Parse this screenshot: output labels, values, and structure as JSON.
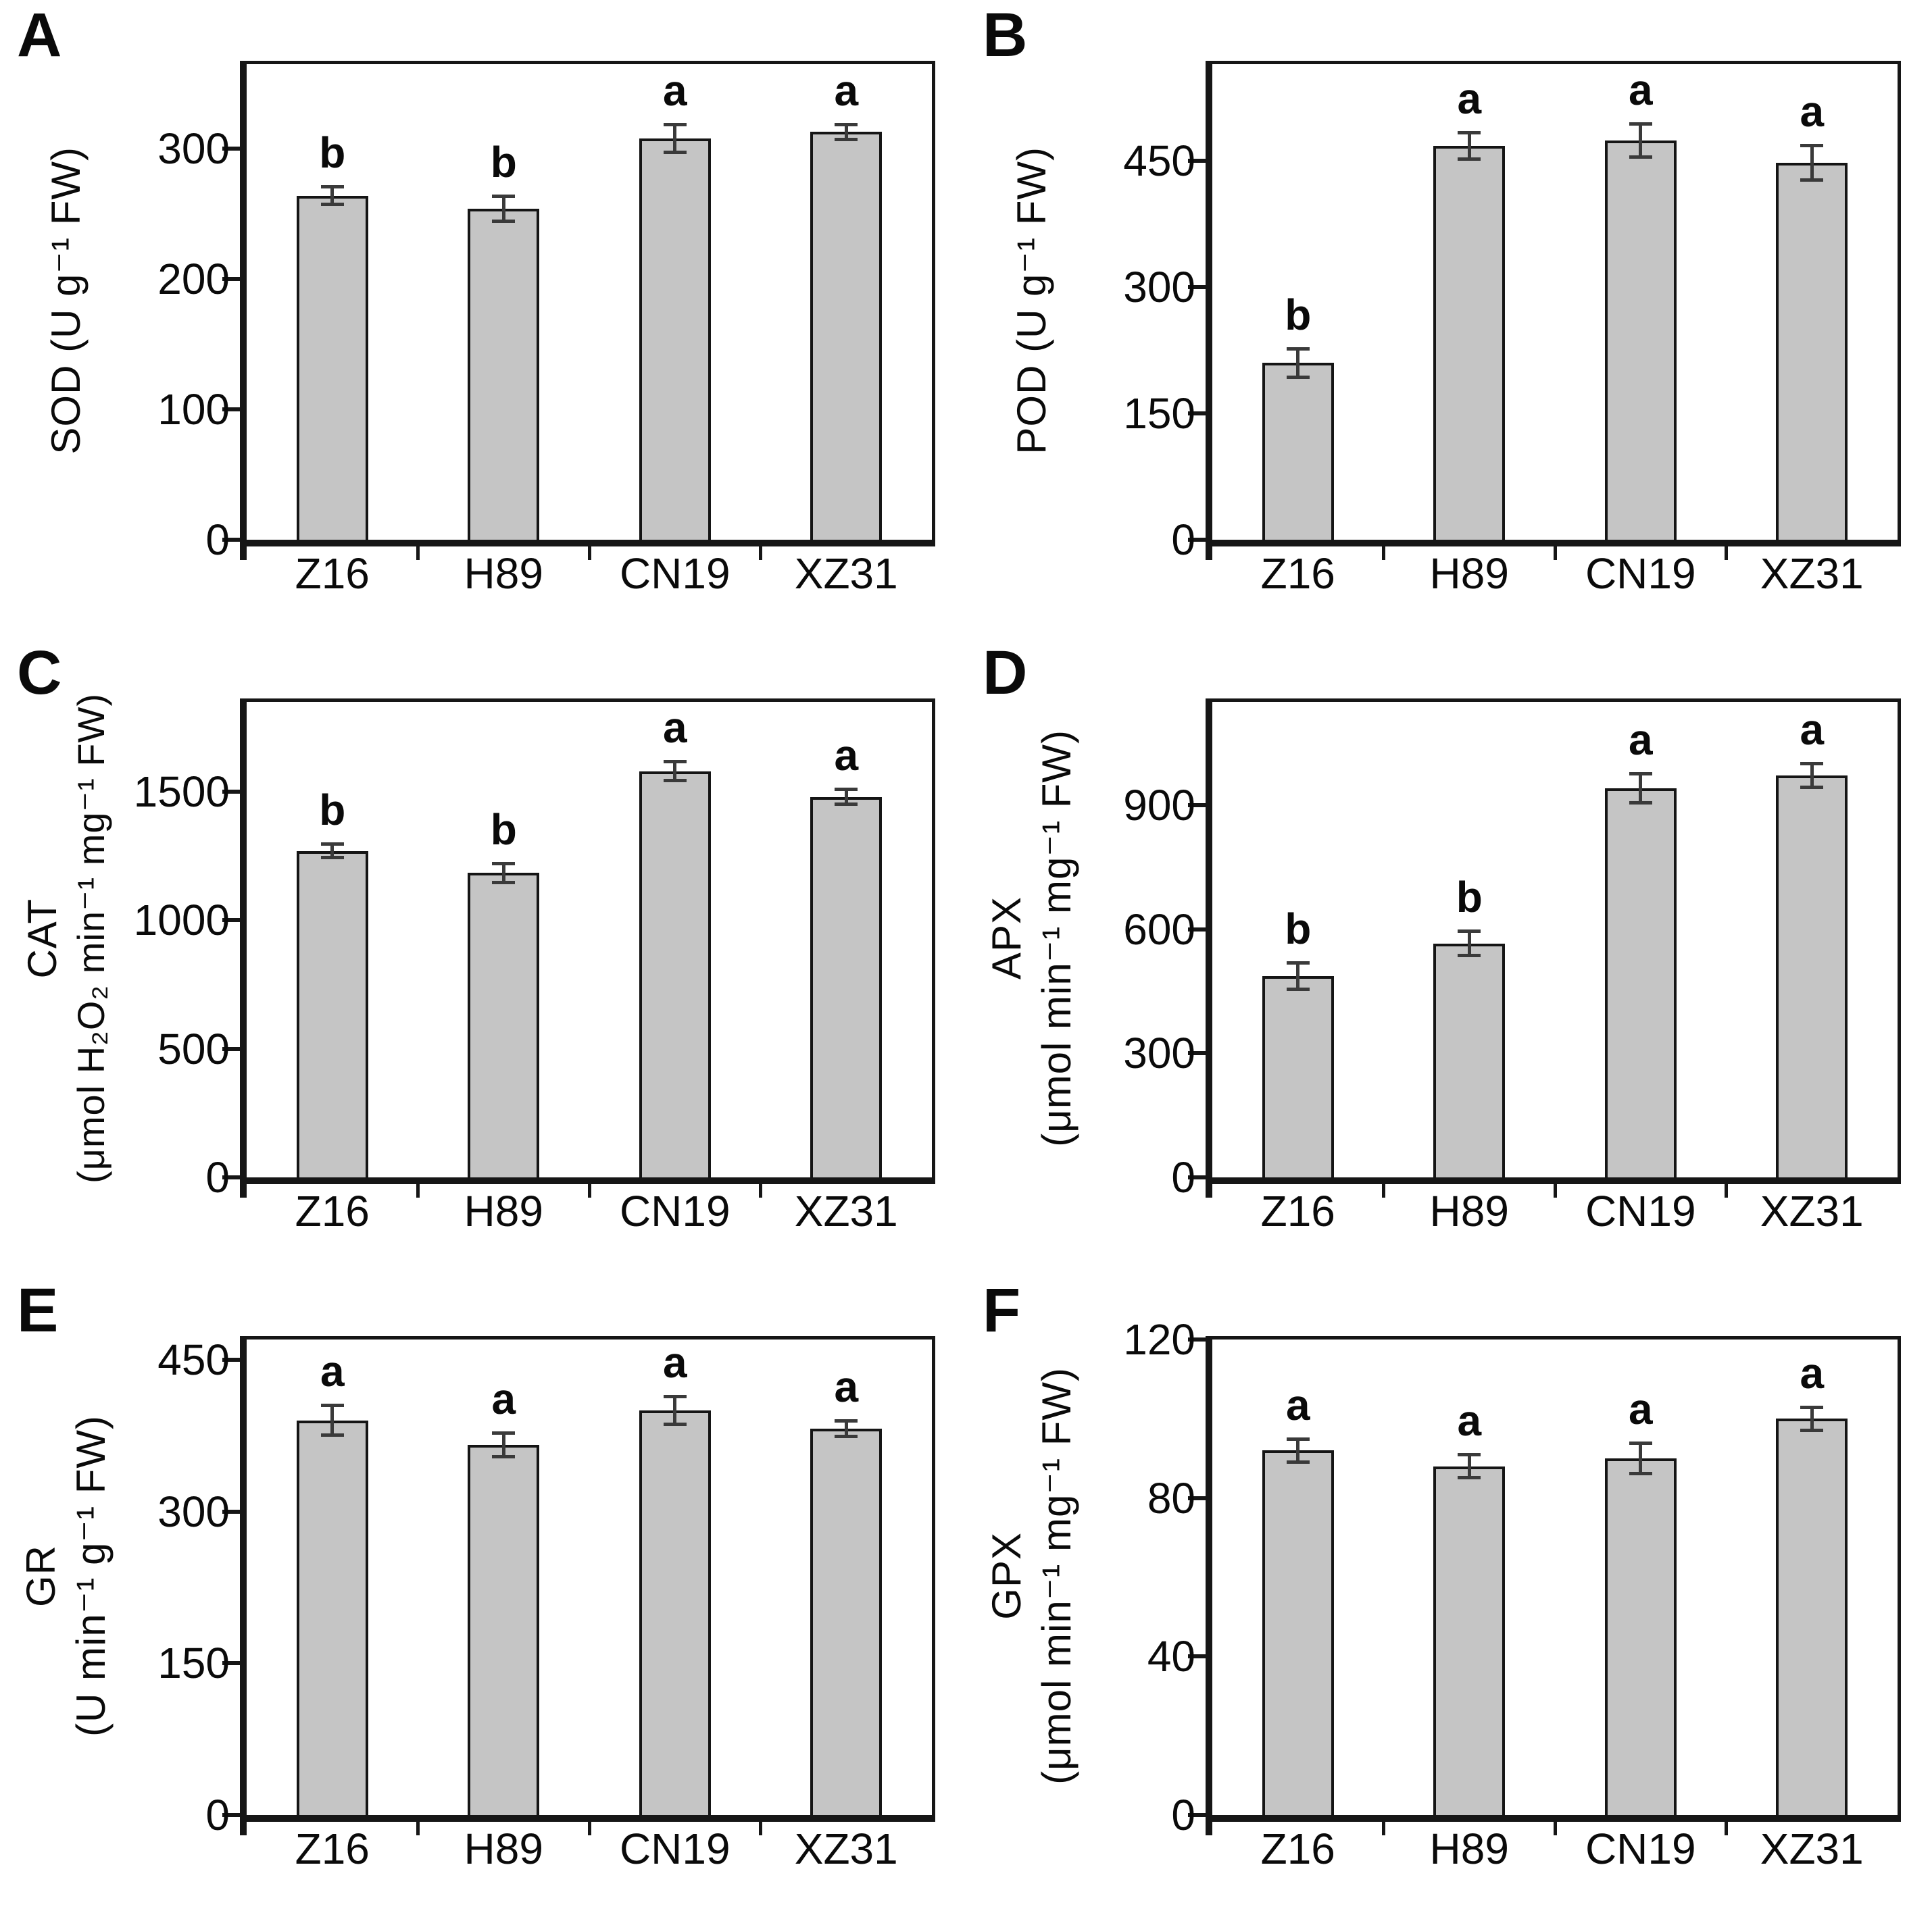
{
  "figure": {
    "background": "#ffffff",
    "categories": [
      "Z16",
      "H89",
      "CN19",
      "XZ31"
    ]
  },
  "colors": {
    "bar_fill": "#c5c5c5",
    "bar_border": "#151515",
    "axis": "#161616",
    "error_bar": "#3a3a3a",
    "text": "#0a0a0a"
  },
  "chart_data": [
    {
      "type": "bar",
      "panel": "A",
      "title": "",
      "ylabel_lines": [
        "SOD (U g⁻¹ FW)"
      ],
      "xlabel": "",
      "categories": [
        "Z16",
        "H89",
        "CN19",
        "XZ31"
      ],
      "values": [
        264,
        254,
        308,
        313
      ],
      "errors": [
        7,
        10,
        11,
        6
      ],
      "sig_letters": [
        "b",
        "b",
        "a",
        "a"
      ],
      "yticks": [
        0,
        100,
        200,
        300
      ],
      "ylim": [
        0,
        365
      ],
      "grid": false,
      "legend": "none"
    },
    {
      "type": "bar",
      "panel": "B",
      "title": "",
      "ylabel_lines": [
        "POD (U g⁻¹ FW)"
      ],
      "xlabel": "",
      "categories": [
        "Z16",
        "H89",
        "CN19",
        "XZ31"
      ],
      "values": [
        210,
        468,
        474,
        448
      ],
      "errors": [
        17,
        16,
        20,
        21
      ],
      "sig_letters": [
        "b",
        "a",
        "a",
        "a"
      ],
      "yticks": [
        0,
        150,
        300,
        450
      ],
      "ylim": [
        0,
        565
      ],
      "grid": false,
      "legend": "none"
    },
    {
      "type": "bar",
      "panel": "C",
      "title": "",
      "ylabel_lines": [
        "CAT",
        "(μmol H₂O₂ min⁻¹ mg⁻¹ FW)"
      ],
      "xlabel": "",
      "categories": [
        "Z16",
        "H89",
        "CN19",
        "XZ31"
      ],
      "values": [
        1270,
        1185,
        1580,
        1480
      ],
      "errors": [
        28,
        38,
        38,
        30
      ],
      "sig_letters": [
        "b",
        "b",
        "a",
        "a"
      ],
      "yticks": [
        0,
        500,
        1000,
        1500
      ],
      "ylim": [
        0,
        1850
      ],
      "grid": false,
      "legend": "none"
    },
    {
      "type": "bar",
      "panel": "D",
      "title": "",
      "ylabel_lines": [
        "APX",
        "(μmol min⁻¹ mg⁻¹ FW)"
      ],
      "xlabel": "",
      "categories": [
        "Z16",
        "H89",
        "CN19",
        "XZ31"
      ],
      "values": [
        487,
        566,
        941,
        972
      ],
      "errors": [
        33,
        31,
        36,
        30
      ],
      "sig_letters": [
        "b",
        "b",
        "a",
        "a"
      ],
      "yticks": [
        0,
        300,
        600,
        900
      ],
      "ylim": [
        0,
        1150
      ],
      "grid": false,
      "legend": "none"
    },
    {
      "type": "bar",
      "panel": "E",
      "title": "",
      "ylabel_lines": [
        "GR",
        "(U min⁻¹ g⁻¹ FW)"
      ],
      "xlabel": "",
      "categories": [
        "Z16",
        "H89",
        "CN19",
        "XZ31"
      ],
      "values": [
        390,
        366,
        400,
        382
      ],
      "errors": [
        15,
        12,
        14,
        8
      ],
      "sig_letters": [
        "a",
        "a",
        "a",
        "a"
      ],
      "yticks": [
        0,
        150,
        300,
        450
      ],
      "ylim": [
        0,
        470
      ],
      "grid": false,
      "legend": "none"
    },
    {
      "type": "bar",
      "panel": "F",
      "title": "",
      "ylabel_lines": [
        "GPX",
        "(μmol min⁻¹ mg⁻¹ FW)"
      ],
      "xlabel": "",
      "categories": [
        "Z16",
        "H89",
        "CN19",
        "XZ31"
      ],
      "values": [
        92,
        88,
        90,
        100
      ],
      "errors": [
        3,
        3,
        4,
        3
      ],
      "sig_letters": [
        "a",
        "a",
        "a",
        "a"
      ],
      "yticks": [
        0,
        40,
        80,
        120
      ],
      "ylim": [
        0,
        120
      ],
      "grid": false,
      "legend": "none"
    }
  ]
}
